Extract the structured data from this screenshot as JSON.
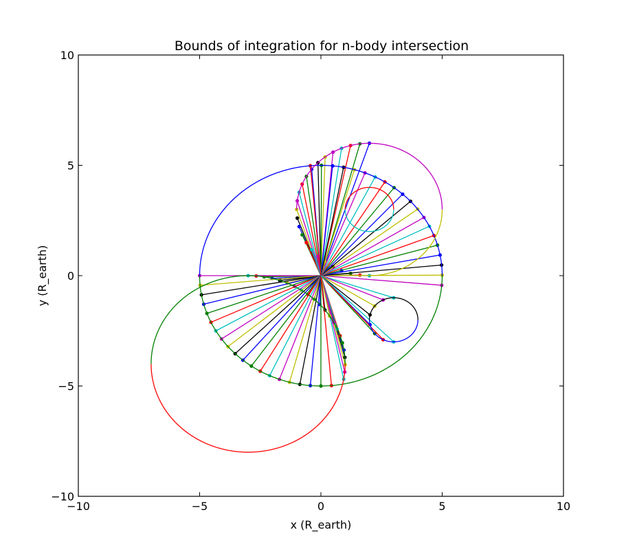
{
  "chart_data": {
    "type": "line",
    "title": "Bounds of integration for n-body intersection",
    "xlabel": "x (R_earth)",
    "ylabel": "y (R_earth)",
    "xlim": [
      -10,
      10
    ],
    "ylim": [
      -10,
      10
    ],
    "xticks": [
      "−10",
      "−5",
      "0",
      "5",
      "10"
    ],
    "yticks": [
      "−10",
      "−5",
      "0",
      "5",
      "10"
    ],
    "grid": false,
    "legend": "none",
    "series_colors": [
      "#0000ff",
      "#008000",
      "#ff0000",
      "#00bfbf",
      "#bf00bf",
      "#bfbf00",
      "#000000"
    ],
    "circles": [
      {
        "cx": 0,
        "cy": 0,
        "r": 5,
        "color": "#0000ff",
        "arc_deg": [
          0,
          180
        ]
      },
      {
        "cx": 0,
        "cy": 0,
        "r": 5,
        "color": "#008000",
        "arc_deg": [
          180,
          360
        ]
      },
      {
        "cx": 2,
        "cy": 3,
        "r": 3,
        "color": "#bf00bf",
        "arc_deg": [
          0,
          180
        ]
      },
      {
        "cx": 2,
        "cy": 3,
        "r": 3,
        "color": "#bfbf00",
        "arc_deg": [
          -90,
          0
        ]
      },
      {
        "cx": 2,
        "cy": 3,
        "r": 1,
        "color": "#ff0000",
        "arc_deg": [
          0,
          180
        ]
      },
      {
        "cx": 2,
        "cy": 3,
        "r": 1,
        "color": "#00bfbf",
        "arc_deg": [
          180,
          360
        ]
      },
      {
        "cx": -3,
        "cy": -4,
        "r": 4,
        "color": "#ff0000",
        "arc_deg": [
          180,
          360
        ]
      },
      {
        "cx": -3,
        "cy": -4,
        "r": 4,
        "color": "#008000",
        "arc_deg": [
          0,
          180
        ]
      },
      {
        "cx": 3,
        "cy": -2,
        "r": 1,
        "color": "#000000",
        "arc_deg": [
          0,
          180
        ]
      },
      {
        "cx": 3,
        "cy": -2,
        "r": 1,
        "color": "#0000ff",
        "arc_deg": [
          180,
          360
        ]
      }
    ],
    "ray_fans": [
      {
        "cx": 2,
        "cy": 3,
        "r": 3,
        "angle_start_deg": 90,
        "angle_end_deg": 270,
        "count": 25
      },
      {
        "cx": 0,
        "cy": 0,
        "r": 5,
        "angle_start_deg": -5,
        "angle_end_deg": 95,
        "count": 20
      },
      {
        "cx": -3,
        "cy": -4,
        "r": 4,
        "angle_start_deg": -10,
        "angle_end_deg": 90,
        "count": 22
      },
      {
        "cx": 0,
        "cy": 0,
        "r": 5,
        "angle_start_deg": 180,
        "angle_end_deg": 275,
        "count": 20
      },
      {
        "cx": 3,
        "cy": -2,
        "r": 1,
        "angle_start_deg": 90,
        "angle_end_deg": 270,
        "count": 8
      }
    ]
  }
}
